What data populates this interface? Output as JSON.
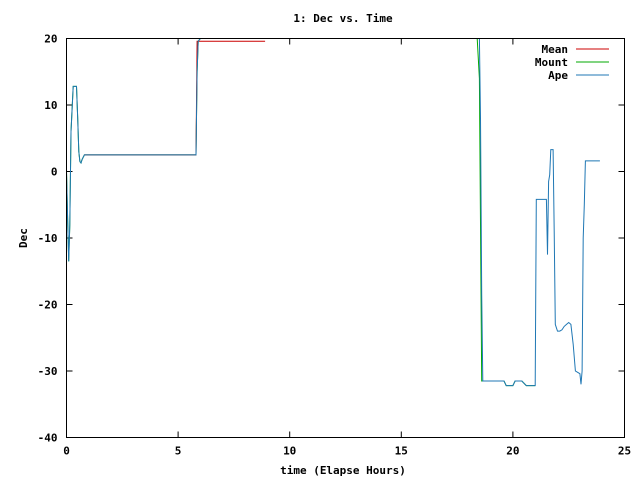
{
  "chart_data": {
    "type": "line",
    "title": "1: Dec vs. Time",
    "xlabel": "time (Elapse Hours)",
    "ylabel": "Dec",
    "xlim": [
      0,
      25
    ],
    "ylim": [
      -40,
      20
    ],
    "xticks": [
      0,
      5,
      10,
      15,
      20,
      25
    ],
    "yticks": [
      -40,
      -30,
      -20,
      -10,
      0,
      10,
      20
    ],
    "grid": false,
    "legend_position": "top-right",
    "series": [
      {
        "name": "Mean",
        "color": "#cc0000",
        "x": [
          0.8,
          5.8,
          5.85,
          8.9
        ],
        "y": [
          2.5,
          2.5,
          19.6,
          19.6
        ]
      },
      {
        "name": "Mount",
        "color": "#00aa00",
        "x": [
          0.0,
          0.05,
          0.1,
          0.15,
          0.2,
          0.3,
          0.35,
          0.45,
          0.5,
          0.55,
          0.6,
          0.65,
          0.7,
          0.8,
          5.8,
          5.85,
          5.9,
          6.0,
          18.4,
          18.5,
          18.6,
          18.65,
          19.6,
          19.7,
          20.0,
          20.1,
          20.4,
          20.6,
          20.65,
          21.0
        ],
        "y": [
          0.0,
          -7.0,
          -13.5,
          -8.0,
          6.0,
          12.8,
          12.8,
          12.8,
          8.0,
          3.0,
          1.5,
          1.3,
          1.8,
          2.5,
          2.5,
          15.0,
          19.6,
          20.0,
          20.0,
          14.0,
          -31.5,
          -31.5,
          -31.5,
          -32.2,
          -32.2,
          -31.5,
          -31.5,
          -32.2,
          -32.2,
          -32.2
        ]
      },
      {
        "name": "Ape",
        "color": "#1f77b4",
        "x": [
          0.0,
          0.05,
          0.1,
          0.15,
          0.2,
          0.3,
          0.35,
          0.45,
          0.5,
          0.55,
          0.6,
          0.65,
          0.7,
          0.8,
          5.8,
          5.85,
          5.9,
          6.0,
          18.5,
          18.55,
          18.6,
          18.65,
          18.7,
          19.6,
          19.7,
          20.0,
          20.1,
          20.4,
          20.6,
          20.65,
          21.0,
          21.05,
          21.1,
          21.5,
          21.55,
          21.6,
          21.65,
          21.7,
          21.8,
          21.85,
          21.9,
          21.95,
          22.0,
          22.1,
          22.2,
          22.3,
          22.4,
          22.5,
          22.6,
          22.7,
          22.8,
          22.9,
          23.0,
          23.05,
          23.1,
          23.15,
          23.2,
          23.25,
          23.3,
          23.9
        ],
        "y": [
          0.0,
          -7.0,
          -13.5,
          -8.0,
          6.0,
          12.8,
          12.8,
          12.8,
          8.0,
          3.0,
          1.5,
          1.3,
          1.8,
          2.5,
          2.5,
          15.0,
          19.6,
          20.0,
          20.0,
          8.0,
          -18.5,
          -31.5,
          -31.5,
          -31.5,
          -32.2,
          -32.2,
          -31.5,
          -31.5,
          -32.2,
          -32.2,
          -32.2,
          -4.2,
          -4.2,
          -4.2,
          -12.5,
          -1.5,
          -0.5,
          3.3,
          3.3,
          -9.0,
          -23.0,
          -23.5,
          -24.0,
          -24.0,
          -23.8,
          -23.3,
          -23.0,
          -22.7,
          -23.0,
          -26.0,
          -30.0,
          -30.2,
          -30.4,
          -32.0,
          -30.0,
          -10.0,
          -5.0,
          1.6,
          1.6,
          1.6
        ]
      }
    ]
  }
}
